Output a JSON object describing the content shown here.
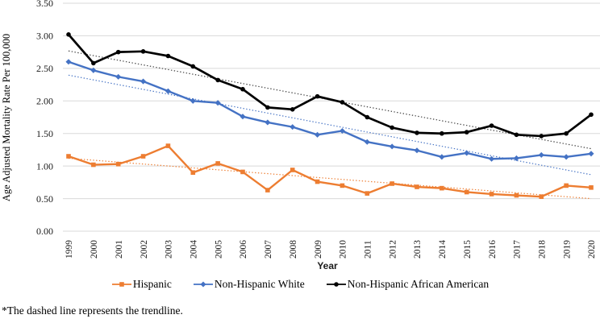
{
  "footnote": "*The dashed line represents the trendline.",
  "chart_data": {
    "type": "line",
    "title": "",
    "xlabel": "Year",
    "ylabel": "Age Adjusted Mortality Rate Per 100,000",
    "x": [
      "1999",
      "2000",
      "2001",
      "2002",
      "2003",
      "2004",
      "2005",
      "2006",
      "2007",
      "2008",
      "2009",
      "2010",
      "2011",
      "2012",
      "2013",
      "2014",
      "2015",
      "2016",
      "2017",
      "2018",
      "2019",
      "2020"
    ],
    "ylim": [
      0,
      3.5
    ],
    "ytick_step": 0.5,
    "ytick_labels": [
      "0.00",
      "0.50",
      "1.00",
      "1.50",
      "2.00",
      "2.50",
      "3.00",
      "3.50"
    ],
    "grid": true,
    "legend_position": "bottom",
    "trendline_note": "dotted linear trendline per series",
    "gridline_color": "#d9d9d9",
    "series": [
      {
        "name": "Hispanic",
        "color": "#ED7D31",
        "marker": "square",
        "trendline": true,
        "trendline_color": "#ED7D31",
        "values": [
          1.15,
          1.02,
          1.03,
          1.15,
          1.31,
          0.9,
          1.04,
          0.91,
          0.63,
          0.94,
          0.76,
          0.7,
          0.58,
          0.73,
          0.68,
          0.66,
          0.6,
          0.57,
          0.55,
          0.53,
          0.7,
          0.67
        ]
      },
      {
        "name": "Non-Hispanic White",
        "color": "#4472C4",
        "marker": "diamond",
        "trendline": true,
        "trendline_color": "#4472C4",
        "values": [
          2.6,
          2.47,
          2.37,
          2.3,
          2.15,
          2.0,
          1.97,
          1.76,
          1.67,
          1.6,
          1.48,
          1.54,
          1.37,
          1.3,
          1.24,
          1.14,
          1.2,
          1.11,
          1.12,
          1.17,
          1.14,
          1.19
        ]
      },
      {
        "name": "Non-Hispanic African American",
        "color": "#000000",
        "marker": "circle",
        "trendline": true,
        "trendline_color": "#404040",
        "values": [
          3.02,
          2.58,
          2.75,
          2.76,
          2.69,
          2.53,
          2.32,
          2.18,
          1.9,
          1.87,
          2.07,
          1.98,
          1.75,
          1.59,
          1.51,
          1.5,
          1.52,
          1.62,
          1.48,
          1.46,
          1.5,
          1.79
        ]
      }
    ]
  }
}
